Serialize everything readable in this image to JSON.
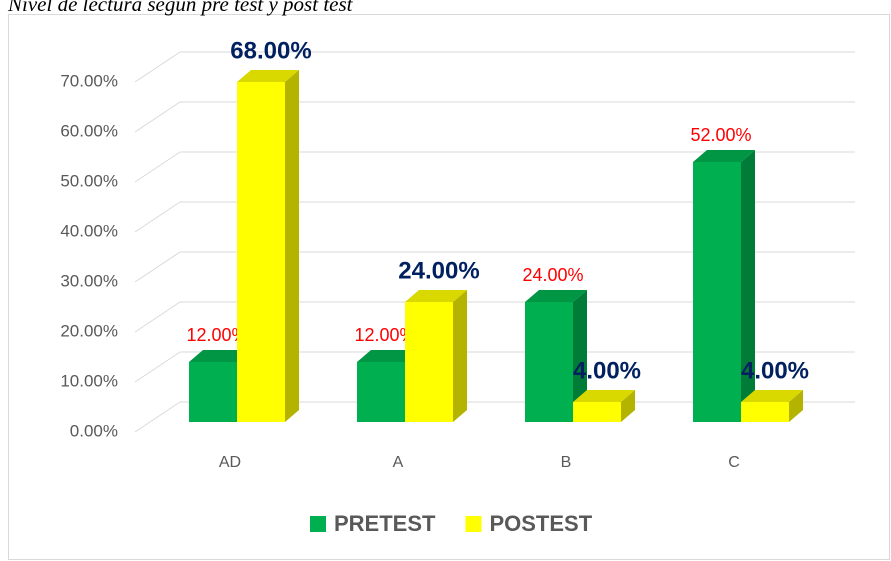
{
  "chart_data": {
    "type": "bar3d",
    "title": "Nivel de lectura según pre test y post test",
    "categories": [
      "AD",
      "A",
      "B",
      "C"
    ],
    "series": [
      {
        "name": "PRETEST",
        "color": "#00b050",
        "values": [
          12,
          12,
          24,
          52
        ],
        "value_labels": [
          "12.00%",
          "12.00%",
          "24.00%",
          "52.00%"
        ]
      },
      {
        "name": "POSTEST",
        "color": "#ffff00",
        "values": [
          68,
          24,
          4,
          4
        ],
        "value_labels": [
          "68.00%",
          "24.00%",
          "4.00%",
          "4.00%"
        ]
      }
    ],
    "ylim": [
      0,
      70
    ],
    "yticks": [
      {
        "value": 0,
        "label": "0.00%"
      },
      {
        "value": 10,
        "label": "10.00%"
      },
      {
        "value": 20,
        "label": "20.00%"
      },
      {
        "value": 30,
        "label": "30.00%"
      },
      {
        "value": 40,
        "label": "40.00%"
      },
      {
        "value": 50,
        "label": "50.00%"
      },
      {
        "value": 60,
        "label": "60.00%"
      },
      {
        "value": 70,
        "label": "70.00%"
      }
    ],
    "grid": true,
    "legend": "bottom"
  }
}
